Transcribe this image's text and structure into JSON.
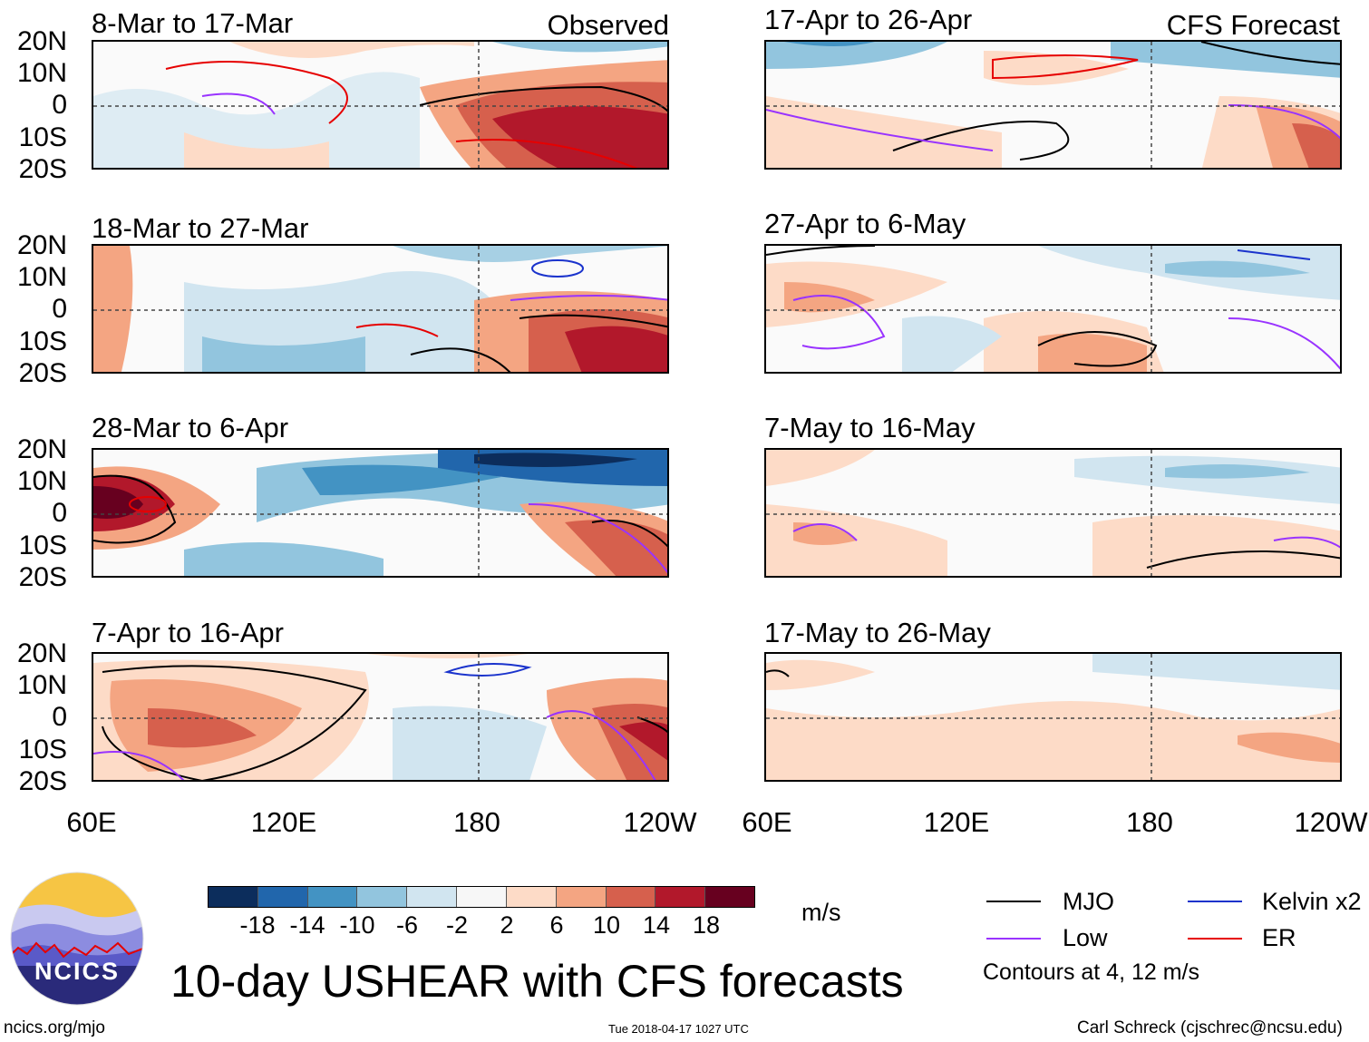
{
  "figure_title": "10-day USHEAR with CFS forecasts",
  "left_header": "Observed",
  "right_header": "CFS Forecast",
  "lat_labels": [
    "20N",
    "10N",
    "0",
    "10S",
    "20S"
  ],
  "lon_labels": [
    "60E",
    "120E",
    "180",
    "120W"
  ],
  "panels_left": [
    "8-Mar to 17-Mar",
    "18-Mar to 27-Mar",
    "28-Mar to 6-Apr",
    "7-Apr to 16-Apr"
  ],
  "panels_right": [
    "17-Apr to 26-Apr",
    "27-Apr to 6-May",
    "7-May to 16-May",
    "17-May to 26-May"
  ],
  "colorbar": {
    "ticks": [
      "-18",
      "-14",
      "-10",
      "-6",
      "-2",
      "2",
      "6",
      "10",
      "14",
      "18"
    ],
    "colors": [
      "#0c2d5c",
      "#2166ac",
      "#4393c3",
      "#92c5de",
      "#d1e5f0",
      "#f7f7f7",
      "#fddbc7",
      "#f4a582",
      "#d6604d",
      "#b2182b",
      "#67001f"
    ],
    "units": "m/s"
  },
  "legend": {
    "mjo": "MJO",
    "low": "Low",
    "kelvin": "Kelvin x2",
    "er": "ER",
    "contours": "Contours at 4, 12 m/s",
    "mjo_color": "#000000",
    "low_color": "#9933ff",
    "kelvin_color": "#1a33cc",
    "er_color": "#e60000"
  },
  "logo_text": "NCICS",
  "footer": {
    "website": "ncics.org/mjo",
    "timestamp": "Tue 2018-04-17 1027 UTC",
    "credit": "Carl Schreck (cjschrec@ncsu.edu)"
  }
}
